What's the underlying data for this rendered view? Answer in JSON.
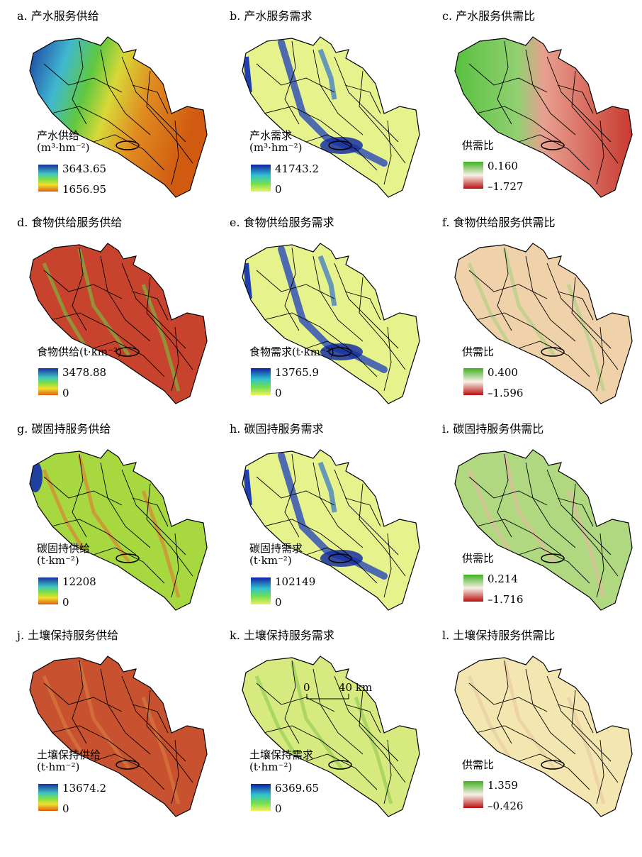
{
  "panels": [
    {
      "title": "a. 产水服务供给",
      "legend_title": [
        "产水供给",
        "(m³·hm⁻²)"
      ],
      "legend_max": "3643.65",
      "legend_min": "1656.95"
    },
    {
      "title": "b. 产水服务需求",
      "legend_title": [
        "产水需求",
        "(m³·hm⁻²)"
      ],
      "legend_max": "41743.2",
      "legend_min": "0"
    },
    {
      "title": "c. 产水服务供需比",
      "legend_title": [
        "供需比"
      ],
      "legend_max": "0.160",
      "legend_min": "–1.727"
    },
    {
      "title": "d. 食物供给服务供给",
      "legend_title": [
        "食物供给(t·km⁻²)"
      ],
      "legend_max": "3478.88",
      "legend_min": "0"
    },
    {
      "title": "e. 食物供给服务需求",
      "legend_title": [
        "食物需求(t·km⁻²)"
      ],
      "legend_max": "13765.9",
      "legend_min": "0"
    },
    {
      "title": "f. 食物供给服务供需比",
      "legend_title": [
        "供需比"
      ],
      "legend_max": "0.400",
      "legend_min": "–1.596"
    },
    {
      "title": "g. 碳固持服务供给",
      "legend_title": [
        "碳固持供给",
        "(t·km⁻²)"
      ],
      "legend_max": "12208",
      "legend_min": "0"
    },
    {
      "title": "h. 碳固持服务需求",
      "legend_title": [
        "碳固持需求",
        "(t·km⁻²)"
      ],
      "legend_max": "102149",
      "legend_min": "0"
    },
    {
      "title": "i. 碳固持服务供需比",
      "legend_title": [
        "供需比"
      ],
      "legend_max": "0.214",
      "legend_min": "–1.716"
    },
    {
      "title": "j. 土壤保持服务供给",
      "legend_title": [
        "土壤保持供给",
        "(t·hm⁻²)"
      ],
      "legend_max": "13674.2",
      "legend_min": "0"
    },
    {
      "title": "k. 土壤保持服务需求",
      "legend_title": [
        "土壤保持需求",
        "(t·hm⁻²)"
      ],
      "legend_max": "6369.65",
      "legend_min": "0"
    },
    {
      "title": "l. 土壤保持服务供需比",
      "legend_title": [
        "供需比"
      ],
      "legend_max": "1.359",
      "legend_min": "–0.426"
    }
  ],
  "scale_bar": {
    "start": "0",
    "end": "40 km"
  }
}
